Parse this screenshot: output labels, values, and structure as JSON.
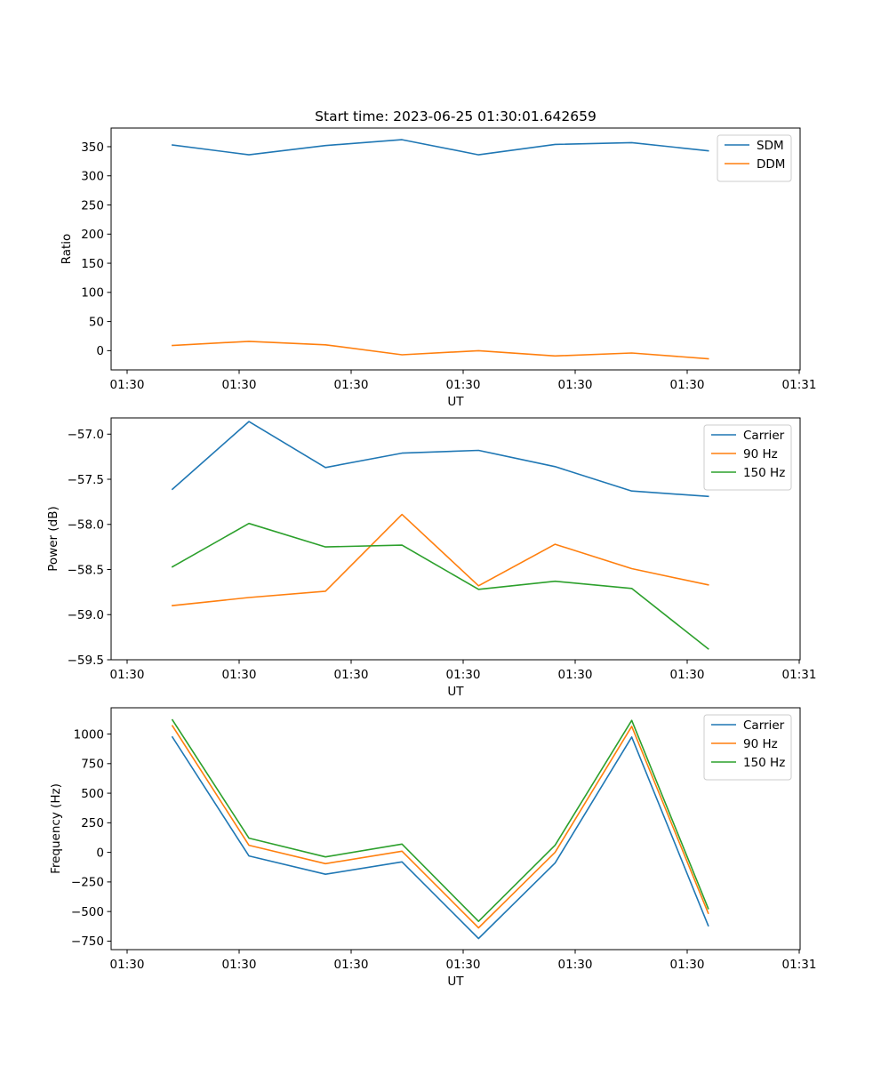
{
  "figure_title": "Start time: 2023-06-25 01:30:01.642659",
  "x_tick_labels": [
    "01:30",
    "01:30",
    "01:30",
    "01:30",
    "01:30",
    "01:30",
    "01:31"
  ],
  "chart_data": [
    {
      "type": "line",
      "title": "Start time: 2023-06-25 01:30:01.642659",
      "xlabel": "UT",
      "ylabel": "Ratio",
      "x": [
        1,
        2,
        3,
        4,
        5,
        6,
        7,
        8
      ],
      "xlim": [
        0.2,
        9.2
      ],
      "ylim": [
        -33,
        382
      ],
      "yticks": [
        0,
        50,
        100,
        150,
        200,
        250,
        300,
        350
      ],
      "ytick_labels": [
        "0",
        "50",
        "100",
        "150",
        "200",
        "250",
        "300",
        "350"
      ],
      "grid": false,
      "legend": "top-right",
      "series": [
        {
          "name": "SDM",
          "color": "#1f77b4",
          "values": [
            353,
            336,
            352,
            362,
            336,
            354,
            357,
            343
          ]
        },
        {
          "name": "DDM",
          "color": "#ff7f0e",
          "values": [
            9,
            16,
            10,
            -7,
            0,
            -9,
            -4,
            -14
          ]
        }
      ]
    },
    {
      "type": "line",
      "xlabel": "UT",
      "ylabel": "Power (dB)",
      "x": [
        1,
        2,
        3,
        4,
        5,
        6,
        7,
        8
      ],
      "xlim": [
        0.2,
        9.2
      ],
      "ylim": [
        -59.5,
        -56.82
      ],
      "yticks": [
        -59.5,
        -59.0,
        -58.5,
        -58.0,
        -57.5,
        -57.0
      ],
      "ytick_labels": [
        "−59.5",
        "−59.0",
        "−58.5",
        "−58.0",
        "−57.5",
        "−57.0"
      ],
      "grid": false,
      "legend": "top-right",
      "series": [
        {
          "name": "Carrier",
          "color": "#1f77b4",
          "values": [
            -57.61,
            -56.86,
            -57.37,
            -57.21,
            -57.18,
            -57.36,
            -57.63,
            -57.69
          ]
        },
        {
          "name": "90 Hz",
          "color": "#ff7f0e",
          "values": [
            -58.9,
            -58.81,
            -58.74,
            -57.89,
            -58.68,
            -58.22,
            -58.49,
            -58.67
          ]
        },
        {
          "name": "150 Hz",
          "color": "#2ca02c",
          "values": [
            -58.47,
            -57.99,
            -58.25,
            -58.23,
            -58.72,
            -58.63,
            -58.71,
            -59.38
          ]
        }
      ]
    },
    {
      "type": "line",
      "xlabel": "UT",
      "ylabel": "Frequency (Hz)",
      "x": [
        1,
        2,
        3,
        4,
        5,
        6,
        7,
        8
      ],
      "xlim": [
        0.2,
        9.2
      ],
      "ylim": [
        -822,
        1222
      ],
      "yticks": [
        -750,
        -500,
        -250,
        0,
        250,
        500,
        750,
        1000
      ],
      "ytick_labels": [
        "−750",
        "−500",
        "−250",
        "0",
        "250",
        "500",
        "750",
        "1000"
      ],
      "grid": false,
      "legend": "top-right",
      "series": [
        {
          "name": "Carrier",
          "color": "#1f77b4",
          "values": [
            975,
            -30,
            -185,
            -80,
            -728,
            -90,
            975,
            -620
          ]
        },
        {
          "name": "90 Hz",
          "color": "#ff7f0e",
          "values": [
            1070,
            60,
            -95,
            10,
            -638,
            0,
            1065,
            -515
          ]
        },
        {
          "name": "150 Hz",
          "color": "#2ca02c",
          "values": [
            1120,
            120,
            -38,
            70,
            -583,
            60,
            1115,
            -475
          ]
        }
      ]
    }
  ]
}
